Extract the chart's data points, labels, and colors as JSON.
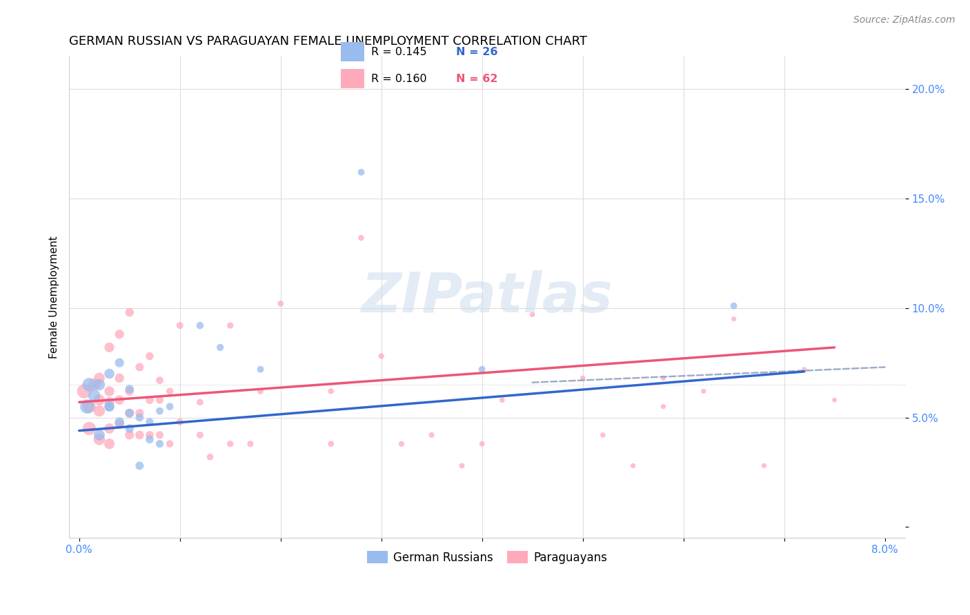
{
  "title": "GERMAN RUSSIAN VS PARAGUAYAN FEMALE UNEMPLOYMENT CORRELATION CHART",
  "source": "Source: ZipAtlas.com",
  "ylabel": "Female Unemployment",
  "x_ticks": [
    0.0,
    0.01,
    0.02,
    0.03,
    0.04,
    0.05,
    0.06,
    0.07,
    0.08
  ],
  "x_tick_labels_show": [
    "0.0%",
    "",
    "",
    "",
    "",
    "",
    "",
    "",
    "8.0%"
  ],
  "y_ticks": [
    0.0,
    0.05,
    0.1,
    0.15,
    0.2
  ],
  "y_tick_labels": [
    "",
    "5.0%",
    "10.0%",
    "15.0%",
    "20.0%"
  ],
  "xlim": [
    -0.001,
    0.082
  ],
  "ylim": [
    -0.005,
    0.215
  ],
  "blue_color": "#99BBEE",
  "pink_color": "#FFAABB",
  "blue_line_color": "#3366CC",
  "pink_line_color": "#EE5577",
  "dashed_color": "#8899BB",
  "title_fontsize": 13,
  "source_fontsize": 10,
  "axis_label_fontsize": 11,
  "tick_color": "#4488FF",
  "watermark": "ZIPatlas",
  "legend_r1": "R = 0.145",
  "legend_n1": "N = 26",
  "legend_r2": "R = 0.160",
  "legend_n2": "N = 62",
  "legend_label1": "German Russians",
  "legend_label2": "Paraguayans",
  "blue_line_x0": 0.0,
  "blue_line_y0": 0.044,
  "blue_line_x1": 0.072,
  "blue_line_y1": 0.071,
  "pink_line_x0": 0.0,
  "pink_line_y0": 0.057,
  "pink_line_x1": 0.075,
  "pink_line_y1": 0.082,
  "dash_line_x0": 0.045,
  "dash_line_y0": 0.066,
  "dash_line_x1": 0.08,
  "dash_line_y1": 0.073,
  "german_russian_x": [
    0.0008,
    0.001,
    0.0015,
    0.002,
    0.002,
    0.003,
    0.003,
    0.003,
    0.004,
    0.004,
    0.005,
    0.005,
    0.005,
    0.006,
    0.006,
    0.007,
    0.007,
    0.008,
    0.008,
    0.009,
    0.012,
    0.014,
    0.018,
    0.028,
    0.04,
    0.065
  ],
  "german_russian_y": [
    0.055,
    0.065,
    0.06,
    0.065,
    0.042,
    0.055,
    0.07,
    0.055,
    0.048,
    0.075,
    0.052,
    0.045,
    0.063,
    0.028,
    0.05,
    0.04,
    0.048,
    0.038,
    0.053,
    0.055,
    0.092,
    0.082,
    0.072,
    0.162,
    0.072,
    0.101
  ],
  "paraguayan_x": [
    0.0005,
    0.001,
    0.001,
    0.0015,
    0.002,
    0.002,
    0.002,
    0.002,
    0.003,
    0.003,
    0.003,
    0.003,
    0.003,
    0.004,
    0.004,
    0.004,
    0.004,
    0.005,
    0.005,
    0.005,
    0.005,
    0.006,
    0.006,
    0.006,
    0.007,
    0.007,
    0.007,
    0.008,
    0.008,
    0.008,
    0.009,
    0.009,
    0.01,
    0.01,
    0.012,
    0.012,
    0.013,
    0.015,
    0.015,
    0.017,
    0.018,
    0.02,
    0.025,
    0.025,
    0.028,
    0.03,
    0.032,
    0.035,
    0.038,
    0.04,
    0.042,
    0.045,
    0.05,
    0.052,
    0.055,
    0.058,
    0.062,
    0.068,
    0.072,
    0.075,
    0.065,
    0.058
  ],
  "paraguayan_y": [
    0.062,
    0.045,
    0.055,
    0.065,
    0.04,
    0.053,
    0.058,
    0.068,
    0.038,
    0.045,
    0.057,
    0.062,
    0.082,
    0.047,
    0.058,
    0.068,
    0.088,
    0.042,
    0.052,
    0.062,
    0.098,
    0.042,
    0.052,
    0.073,
    0.042,
    0.058,
    0.078,
    0.042,
    0.058,
    0.067,
    0.038,
    0.062,
    0.048,
    0.092,
    0.042,
    0.057,
    0.032,
    0.038,
    0.092,
    0.038,
    0.062,
    0.102,
    0.038,
    0.062,
    0.132,
    0.078,
    0.038,
    0.042,
    0.028,
    0.038,
    0.058,
    0.097,
    0.068,
    0.042,
    0.028,
    0.068,
    0.062,
    0.028,
    0.072,
    0.058,
    0.095,
    0.055
  ],
  "german_russian_sizes": [
    220,
    200,
    160,
    140,
    130,
    110,
    110,
    100,
    95,
    90,
    85,
    80,
    80,
    75,
    70,
    70,
    65,
    65,
    60,
    60,
    55,
    55,
    50,
    50,
    50,
    50
  ],
  "paraguayan_sizes": [
    220,
    190,
    180,
    160,
    145,
    140,
    135,
    130,
    120,
    115,
    110,
    108,
    105,
    100,
    98,
    95,
    92,
    90,
    88,
    85,
    82,
    80,
    78,
    75,
    72,
    70,
    68,
    65,
    63,
    60,
    58,
    55,
    53,
    50,
    50,
    48,
    47,
    45,
    44,
    43,
    42,
    40,
    40,
    38,
    38,
    36,
    35,
    34,
    33,
    32,
    31,
    30,
    30,
    29,
    28,
    28,
    27,
    27,
    26,
    26,
    27,
    28
  ]
}
